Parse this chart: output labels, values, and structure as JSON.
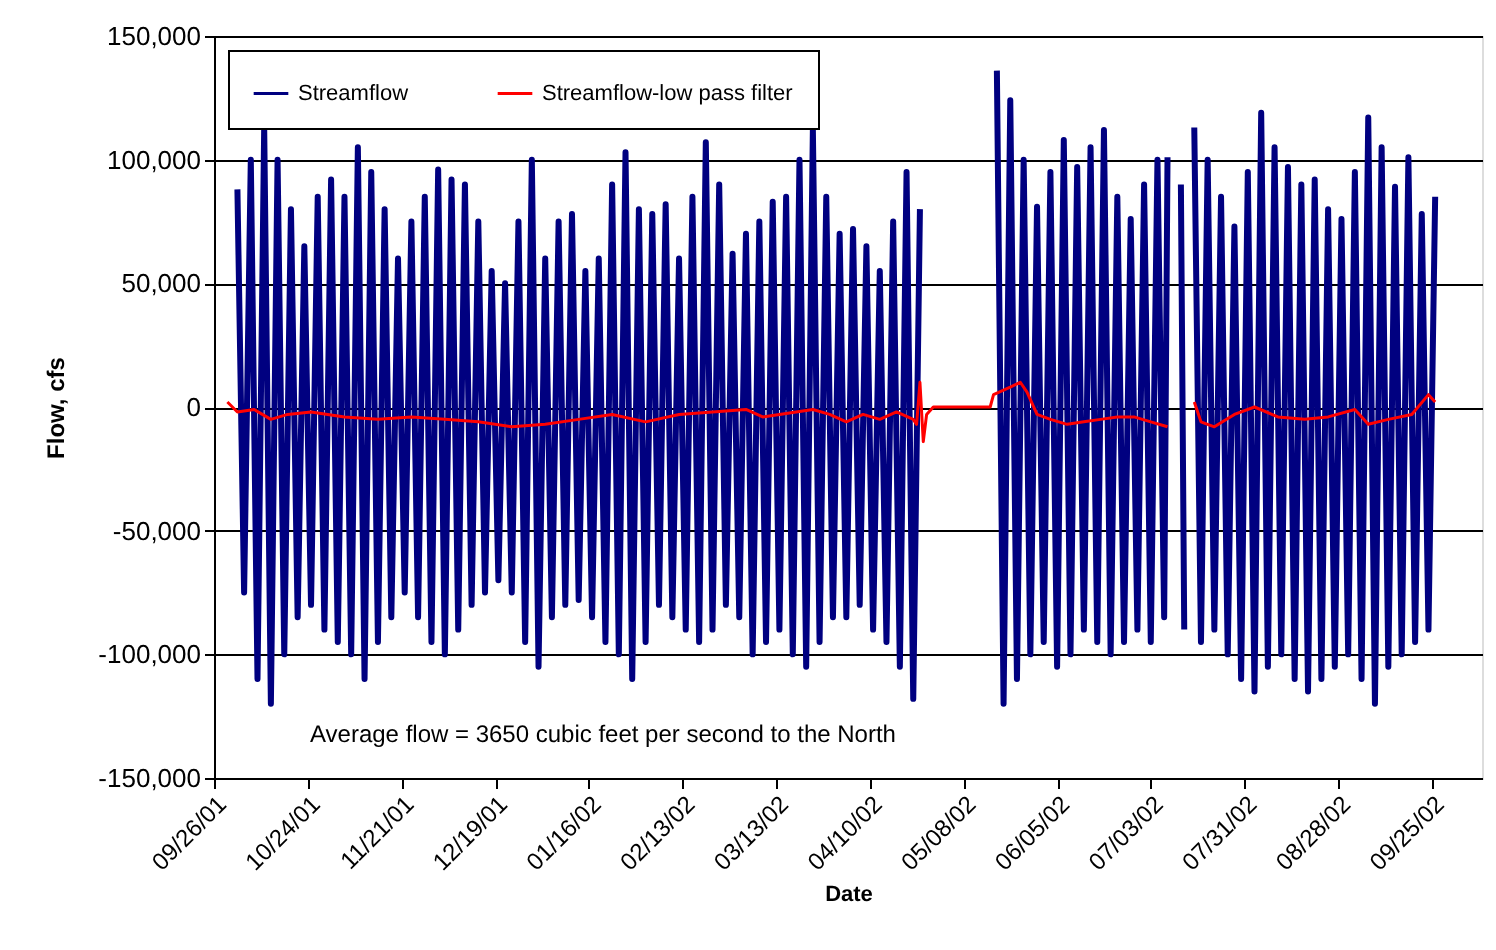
{
  "chart_data": {
    "type": "line",
    "xlabel": "Date",
    "ylabel": "Flow, cfs",
    "annotations": [
      "Average flow = 3650 cubic feet per second to the North"
    ],
    "xlim": [
      "2001-09-26",
      "2002-10-10"
    ],
    "xticks": [
      {
        "value": "2001-09-26",
        "label": "09/26/01"
      },
      {
        "value": "2001-10-24",
        "label": "10/24/01"
      },
      {
        "value": "2001-11-21",
        "label": "11/21/01"
      },
      {
        "value": "2001-12-19",
        "label": "12/19/01"
      },
      {
        "value": "2002-01-16",
        "label": "01/16/02"
      },
      {
        "value": "2002-02-13",
        "label": "02/13/02"
      },
      {
        "value": "2002-03-13",
        "label": "03/13/02"
      },
      {
        "value": "2002-04-10",
        "label": "04/10/02"
      },
      {
        "value": "2002-05-08",
        "label": "05/08/02"
      },
      {
        "value": "2002-06-05",
        "label": "06/05/02"
      },
      {
        "value": "2002-07-03",
        "label": "07/03/02"
      },
      {
        "value": "2002-07-31",
        "label": "07/31/02"
      },
      {
        "value": "2002-08-28",
        "label": "08/28/02"
      },
      {
        "value": "2002-09-25",
        "label": "09/25/02"
      }
    ],
    "ylim": [
      -150000,
      150000
    ],
    "yticks": [
      {
        "value": -150000,
        "label": "-150,000"
      },
      {
        "value": -100000,
        "label": "-100,000"
      },
      {
        "value": -50000,
        "label": "-50,000"
      },
      {
        "value": 0,
        "label": "0"
      },
      {
        "value": 50000,
        "label": "50,000"
      },
      {
        "value": 100000,
        "label": "100,000"
      },
      {
        "value": 150000,
        "label": "150,000"
      }
    ],
    "grid": "y",
    "legend": "top left",
    "line_style": "solid",
    "series": [
      {
        "name": "Streamflow",
        "color": "#000080",
        "x": [
          "2001-10-03",
          "2001-10-05",
          "2001-10-07",
          "2001-10-09",
          "2001-10-11",
          "2001-10-13",
          "2001-10-15",
          "2001-10-17",
          "2001-10-19",
          "2001-10-21",
          "2001-10-23",
          "2001-10-25",
          "2001-10-27",
          "2001-10-29",
          "2001-10-31",
          "2001-11-02",
          "2001-11-04",
          "2001-11-06",
          "2001-11-08",
          "2001-11-10",
          "2001-11-12",
          "2001-11-14",
          "2001-11-16",
          "2001-11-18",
          "2001-11-20",
          "2001-11-22",
          "2001-11-24",
          "2001-11-26",
          "2001-11-28",
          "2001-11-30",
          "2001-12-02",
          "2001-12-04",
          "2001-12-06",
          "2001-12-08",
          "2001-12-10",
          "2001-12-12",
          "2001-12-14",
          "2001-12-16",
          "2001-12-18",
          "2001-12-20",
          "2001-12-22",
          "2001-12-24",
          "2001-12-26",
          "2001-12-28",
          "2001-12-30",
          "2002-01-01",
          "2002-01-03",
          "2002-01-05",
          "2002-01-07",
          "2002-01-09",
          "2002-01-11",
          "2002-01-13",
          "2002-01-15",
          "2002-01-17",
          "2002-01-19",
          "2002-01-21",
          "2002-01-23",
          "2002-01-25",
          "2002-01-27",
          "2002-01-29",
          "2002-01-31",
          "2002-02-02",
          "2002-02-04",
          "2002-02-06",
          "2002-02-08",
          "2002-02-10",
          "2002-02-12",
          "2002-02-14",
          "2002-02-16",
          "2002-02-18",
          "2002-02-20",
          "2002-02-22",
          "2002-02-24",
          "2002-02-26",
          "2002-02-28",
          "2002-03-02",
          "2002-03-04",
          "2002-03-06",
          "2002-03-08",
          "2002-03-10",
          "2002-03-12",
          "2002-03-14",
          "2002-03-16",
          "2002-03-18",
          "2002-03-20",
          "2002-03-22",
          "2002-03-24",
          "2002-03-26",
          "2002-03-28",
          "2002-03-30",
          "2002-04-01",
          "2002-04-03",
          "2002-04-05",
          "2002-04-07",
          "2002-04-09",
          "2002-04-11",
          "2002-04-13",
          "2002-04-15",
          "2002-04-17",
          "2002-04-19",
          "2002-04-21",
          "2002-04-23",
          "2002-04-25",
          "2002-05-06",
          "2002-05-18",
          "2002-05-20",
          "2002-05-22",
          "2002-05-24",
          "2002-05-26",
          "2002-05-28",
          "2002-05-30",
          "2002-06-01",
          "2002-06-03",
          "2002-06-05",
          "2002-06-07",
          "2002-06-09",
          "2002-06-11",
          "2002-06-13",
          "2002-06-15",
          "2002-06-17",
          "2002-06-19",
          "2002-06-21",
          "2002-06-23",
          "2002-06-25",
          "2002-06-27",
          "2002-06-29",
          "2002-07-01",
          "2002-07-03",
          "2002-07-05",
          "2002-07-07",
          "2002-07-08",
          "2002-07-10",
          "2002-07-12",
          "2002-07-13",
          "2002-07-14",
          "2002-07-16",
          "2002-07-18",
          "2002-07-20",
          "2002-07-22",
          "2002-07-24",
          "2002-07-26",
          "2002-07-28",
          "2002-07-30",
          "2002-08-01",
          "2002-08-03",
          "2002-08-05",
          "2002-08-07",
          "2002-08-09",
          "2002-08-11",
          "2002-08-13",
          "2002-08-15",
          "2002-08-17",
          "2002-08-19",
          "2002-08-21",
          "2002-08-23",
          "2002-08-25",
          "2002-08-27",
          "2002-08-29",
          "2002-08-31",
          "2002-09-02",
          "2002-09-04",
          "2002-09-06",
          "2002-09-08",
          "2002-09-10",
          "2002-09-12",
          "2002-09-14",
          "2002-09-16",
          "2002-09-18",
          "2002-09-20",
          "2002-09-22",
          "2002-09-24",
          "2002-09-26"
        ],
        "values": [
          88000,
          -75000,
          100000,
          -110000,
          113000,
          -120000,
          100000,
          -100000,
          80000,
          -85000,
          65000,
          -80000,
          85000,
          -90000,
          92000,
          -95000,
          85000,
          -100000,
          105000,
          -110000,
          95000,
          -95000,
          80000,
          -85000,
          60000,
          -75000,
          75000,
          -85000,
          85000,
          -95000,
          96000,
          -100000,
          92000,
          -90000,
          90000,
          -80000,
          75000,
          -75000,
          55000,
          -70000,
          50000,
          -75000,
          75000,
          -95000,
          100000,
          -105000,
          60000,
          -85000,
          75000,
          -80000,
          78000,
          -78000,
          55000,
          -85000,
          60000,
          -95000,
          90000,
          -100000,
          103000,
          -110000,
          80000,
          -95000,
          78000,
          -80000,
          82000,
          -85000,
          60000,
          -90000,
          85000,
          -95000,
          107000,
          -90000,
          90000,
          -80000,
          62000,
          -85000,
          70000,
          -100000,
          75000,
          -95000,
          83000,
          -90000,
          85000,
          -100000,
          100000,
          -105000,
          112000,
          -95000,
          85000,
          -85000,
          70000,
          -85000,
          72000,
          -80000,
          65000,
          -90000,
          55000,
          -95000,
          75000,
          -105000,
          95000,
          -118000,
          80000,
          null,
          136000,
          -120000,
          124000,
          -110000,
          100000,
          -100000,
          81000,
          -95000,
          95000,
          -105000,
          108000,
          -100000,
          97000,
          -90000,
          105000,
          -95000,
          112000,
          -100000,
          85000,
          -95000,
          76000,
          -90000,
          90000,
          -95000,
          100000,
          -85000,
          101000,
          null,
          90000,
          -90000,
          null,
          113000,
          -95000,
          100000,
          -90000,
          85000,
          -100000,
          73000,
          -110000,
          95000,
          -115000,
          119000,
          -105000,
          105000,
          -100000,
          97000,
          -110000,
          90000,
          -115000,
          92000,
          -110000,
          80000,
          -105000,
          76000,
          -100000,
          95000,
          -110000,
          117000,
          -120000,
          105000,
          -105000,
          89000,
          -100000,
          101000,
          -95000,
          78000,
          -90000,
          85000
        ]
      },
      {
        "name": "Streamflow-low pass filter",
        "color": "#ff0000",
        "x": [
          "2001-09-30",
          "2001-10-03",
          "2001-10-08",
          "2001-10-13",
          "2001-10-18",
          "2001-10-25",
          "2001-11-04",
          "2001-11-14",
          "2001-11-24",
          "2001-12-04",
          "2001-12-14",
          "2001-12-24",
          "2002-01-03",
          "2002-01-13",
          "2002-01-23",
          "2002-02-02",
          "2002-02-12",
          "2002-02-22",
          "2002-03-04",
          "2002-03-09",
          "2002-03-14",
          "2002-03-24",
          "2002-03-29",
          "2002-04-03",
          "2002-04-08",
          "2002-04-13",
          "2002-04-18",
          "2002-04-23",
          "2002-04-24",
          "2002-04-25",
          "2002-04-26",
          "2002-04-27",
          "2002-04-29",
          "2002-05-09",
          "2002-05-16",
          "2002-05-17",
          "2002-05-22",
          "2002-05-25",
          "2002-05-27",
          "2002-05-30",
          "2002-06-03",
          "2002-06-08",
          "2002-06-13",
          "2002-06-18",
          "2002-06-23",
          "2002-06-28",
          "2002-07-03",
          "2002-07-08",
          "2002-07-10",
          "2002-07-16",
          "2002-07-18",
          "2002-07-22",
          "2002-07-28",
          "2002-08-03",
          "2002-08-10",
          "2002-08-18",
          "2002-08-25",
          "2002-09-02",
          "2002-09-06",
          "2002-09-12",
          "2002-09-19",
          "2002-09-24",
          "2002-09-26"
        ],
        "values": [
          2000,
          -2000,
          -1000,
          -5000,
          -3000,
          -2000,
          -4000,
          -5000,
          -4000,
          -5000,
          -6000,
          -8000,
          -7000,
          -5000,
          -3000,
          -6000,
          -3000,
          -2000,
          -1000,
          -4000,
          -3000,
          -1000,
          -3000,
          -6000,
          -3000,
          -5000,
          -2000,
          -5000,
          -7000,
          10000,
          -14000,
          -3000,
          0,
          0,
          0,
          5000,
          8000,
          10000,
          6000,
          -3000,
          -5000,
          -7000,
          -6000,
          -5000,
          -4000,
          -4000,
          -6000,
          -8000,
          null,
          2000,
          -6000,
          -8000,
          -3000,
          0,
          -4000,
          -5000,
          -4000,
          -1000,
          -7000,
          -5000,
          -3000,
          5000,
          2000
        ]
      }
    ]
  }
}
